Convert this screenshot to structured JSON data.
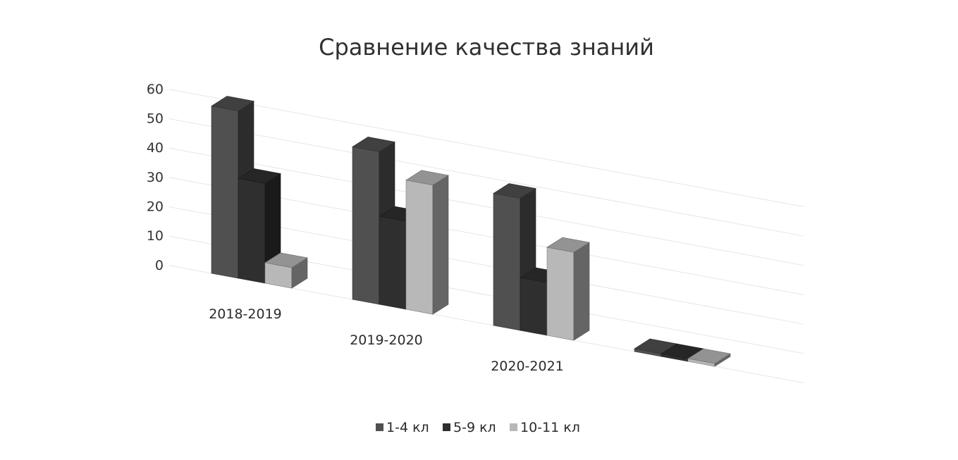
{
  "colors": {
    "background": "#ffffff",
    "gridline": "#e6e6e6",
    "series": [
      "#505050",
      "#2f2f2f",
      "#b8b8b8"
    ]
  },
  "chart_data": {
    "type": "bar",
    "subtype": "3d-clustered-column",
    "title": "Сравнение качества знаний",
    "xlabel": "",
    "ylabel": "",
    "categories": [
      "2018-2019",
      "2019-2020",
      "2020-2021",
      ""
    ],
    "series": [
      {
        "name": "1-4 кл",
        "values": [
          57,
          52,
          45,
          0
        ]
      },
      {
        "name": "5-9 кл",
        "values": [
          34,
          30,
          18,
          0
        ]
      },
      {
        "name": "10-11 кл",
        "values": [
          7,
          44,
          30,
          0
        ]
      }
    ],
    "y_ticks": [
      "0",
      "10",
      "20",
      "30",
      "40",
      "50",
      "60"
    ],
    "ylim": [
      0,
      60
    ],
    "grid": true,
    "legend_position": "bottom"
  }
}
